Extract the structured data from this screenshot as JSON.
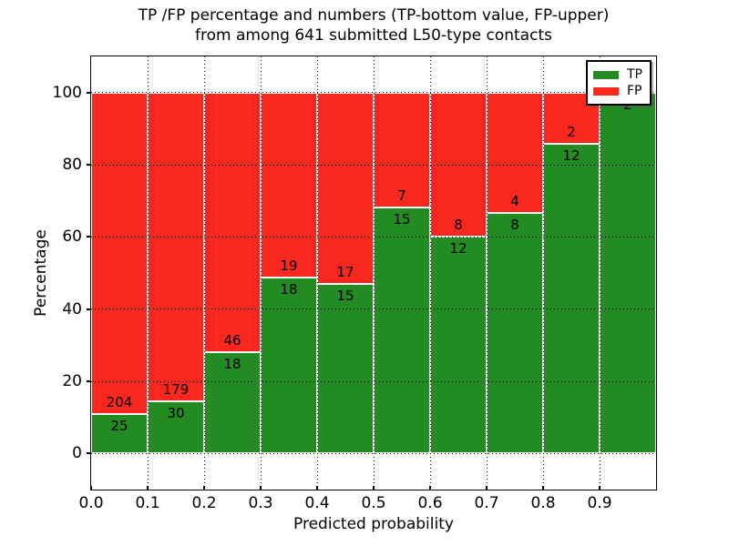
{
  "title": {
    "line1": "TP /FP percentage and numbers (TP-bottom value, FP-upper)",
    "line2": "from among 641 submitted L50-type contacts"
  },
  "chart_data": {
    "type": "bar",
    "subtype": "stacked-percentage-histogram",
    "title": "TP /FP percentage and numbers (TP-bottom value, FP-upper)\nfrom among 641 submitted L50-type contacts",
    "xlabel": "Predicted probability",
    "ylabel": "Percentage",
    "total_contacts": 641,
    "bin_width": 0.1,
    "bin_starts": [
      0.0,
      0.1,
      0.2,
      0.3,
      0.4,
      0.5,
      0.6,
      0.7,
      0.8,
      0.9
    ],
    "series": [
      {
        "name": "TP",
        "color": "#228b22",
        "counts": [
          25,
          30,
          18,
          18,
          15,
          15,
          12,
          8,
          12,
          2
        ]
      },
      {
        "name": "FP",
        "color": "#f8281e",
        "counts": [
          204,
          179,
          46,
          19,
          17,
          7,
          8,
          4,
          2,
          0
        ]
      }
    ],
    "tp_percent_of_bin": [
      10.9,
      14.4,
      28.1,
      48.6,
      46.9,
      68.2,
      60.0,
      66.7,
      85.7,
      100.0
    ],
    "x_tick_labels": [
      "0.0",
      "0.1",
      "0.2",
      "0.3",
      "0.4",
      "0.5",
      "0.6",
      "0.7",
      "0.8",
      "0.9"
    ],
    "y_tick_values": [
      0,
      20,
      40,
      60,
      80,
      100
    ],
    "xlim": [
      0.0,
      1.0
    ],
    "ylim": [
      -10,
      110
    ],
    "grid": {
      "show": true,
      "style": "dotted",
      "color": "#000000"
    },
    "bar_edge_color": "#ffffff",
    "legend": {
      "position": "upper-right",
      "entries": [
        {
          "label": "TP",
          "color": "#228b22"
        },
        {
          "label": "FP",
          "color": "#f8281e"
        }
      ]
    }
  }
}
